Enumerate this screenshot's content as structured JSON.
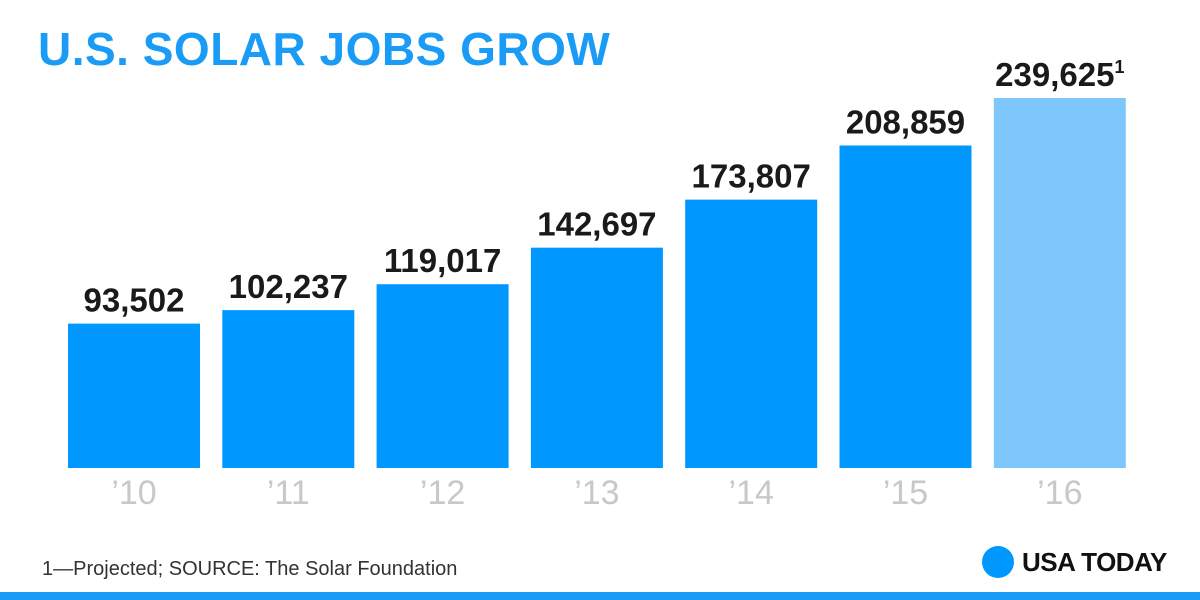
{
  "title": "U.S. SOLAR JOBS GROW",
  "footnote": "1—Projected; SOURCE: The Solar Foundation",
  "brand": {
    "name": "USA TODAY",
    "icon": "usa-today-dot-icon"
  },
  "colors": {
    "title": "#1a9bf5",
    "bar": "#0098ff",
    "bar_projected": "#7dc7fc",
    "value_label": "#1a1a1a",
    "tick_label": "#c8c8c8",
    "rule": "#1a9bf5"
  },
  "chart_data": {
    "type": "bar",
    "title": "U.S. SOLAR JOBS GROW",
    "categories": [
      "’10",
      "’11",
      "’12",
      "’13",
      "’14",
      "’15",
      "’16"
    ],
    "values": [
      93502,
      102237,
      119017,
      142697,
      173807,
      208859,
      239625
    ],
    "value_labels": [
      "93,502",
      "102,237",
      "119,017",
      "142,697",
      "173,807",
      "208,859",
      "239,625"
    ],
    "annotations": [
      {
        "category": "’16",
        "superscript": "1",
        "note": "Projected"
      }
    ],
    "projected": [
      false,
      false,
      false,
      false,
      false,
      false,
      true
    ],
    "xlabel": "",
    "ylabel": "",
    "ylim": [
      0,
      250000
    ],
    "grid": false,
    "legend": "none"
  }
}
